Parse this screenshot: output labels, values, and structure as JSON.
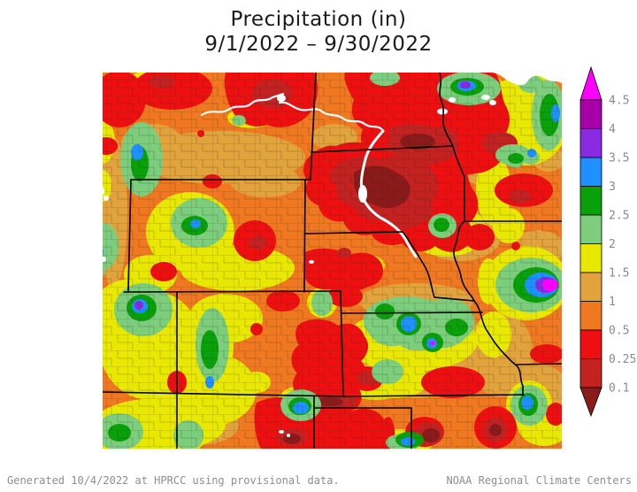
{
  "title": {
    "line1": "Precipitation (in)",
    "line2": "9/1/2022 – 9/30/2022"
  },
  "footer": {
    "left": "Generated 10/4/2022 at HPRCC using provisional data.",
    "right": "NOAA Regional Climate Centers"
  },
  "colorbar": {
    "unit": "in",
    "tick_labels_top_to_bottom": [
      "4.5",
      "4",
      "3.5",
      "3",
      "2.5",
      "2",
      "1.5",
      "1",
      "0.5",
      "0.25",
      "0.1"
    ],
    "band_colors_top_to_bottom": [
      "#A800A8",
      "#8A2BE2",
      "#1E90FF",
      "#0AA00A",
      "#7CCD7C",
      "#E8E800",
      "#E2A33C",
      "#EF7820",
      "#EE1010",
      "#C42121"
    ],
    "arrow_top_color": "#FF00FF",
    "arrow_bottom_color": "#8B1A1A",
    "label_color": "#8a8a8a"
  }
}
